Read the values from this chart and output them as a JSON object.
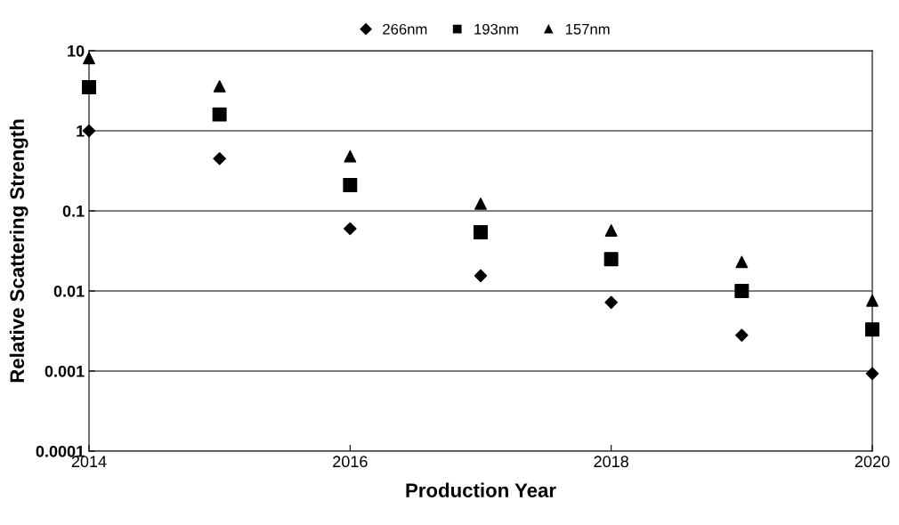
{
  "chart_data": {
    "type": "scatter",
    "xlabel": "Production Year",
    "ylabel": "Relative Scattering Strength",
    "x": [
      2014,
      2015,
      2016,
      2017,
      2018,
      2019,
      2020
    ],
    "series": [
      {
        "name": "266nm",
        "color": "#000000",
        "marker": "diamond",
        "values": [
          1,
          0.45,
          0.06,
          0.0155,
          0.0072,
          0.0028,
          0.00093
        ]
      },
      {
        "name": "193nm",
        "color": "#000000",
        "marker": "square",
        "values": [
          3.5,
          1.6,
          0.21,
          0.054,
          0.025,
          0.01,
          0.0033
        ]
      },
      {
        "name": "157nm",
        "color": "#000000",
        "marker": "triangle",
        "values": [
          8.1,
          3.6,
          0.48,
          0.123,
          0.057,
          0.023,
          0.0076
        ]
      }
    ],
    "log": "y",
    "xlim": [
      2014,
      2020
    ],
    "xticks": [
      2014,
      2016,
      2018,
      2020
    ],
    "ylim": [
      0.0001,
      10
    ],
    "yticks": [
      0.0001,
      0.001,
      0.01,
      0.1,
      1,
      10
    ],
    "grid": "y",
    "legend": "top"
  }
}
